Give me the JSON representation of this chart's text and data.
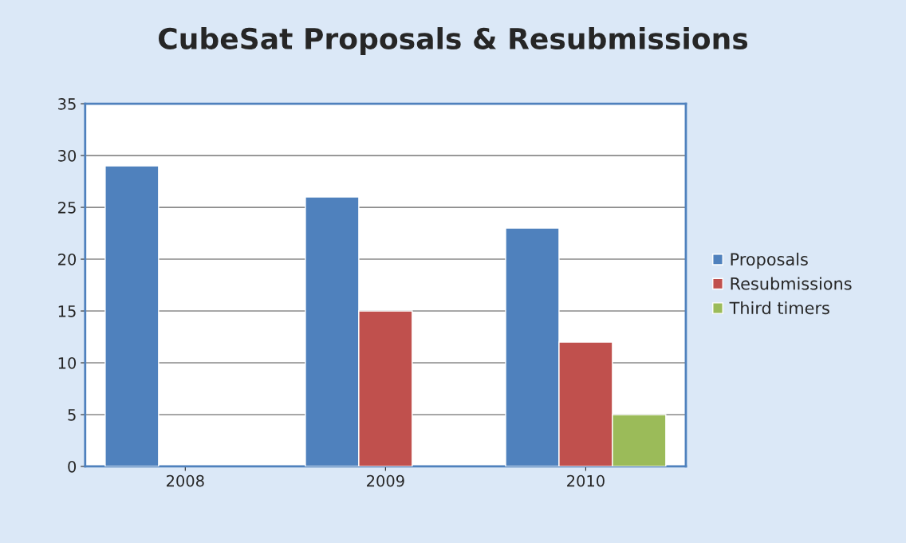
{
  "chart_data": {
    "type": "bar",
    "title": "CubeSat Proposals & Resubmissions",
    "categories": [
      "2008",
      "2009",
      "2010"
    ],
    "series": [
      {
        "name": "Proposals",
        "color": "#4f81bd",
        "values": [
          29,
          26,
          23
        ]
      },
      {
        "name": "Resubmissions",
        "color": "#c0504d",
        "values": [
          null,
          15,
          12
        ]
      },
      {
        "name": "Third timers",
        "color": "#9bbb59",
        "values": [
          null,
          null,
          5
        ]
      }
    ],
    "ylim": [
      0,
      35
    ],
    "yticks": [
      0,
      5,
      10,
      15,
      20,
      25,
      30,
      35
    ],
    "grid": "y",
    "legend": "right"
  }
}
